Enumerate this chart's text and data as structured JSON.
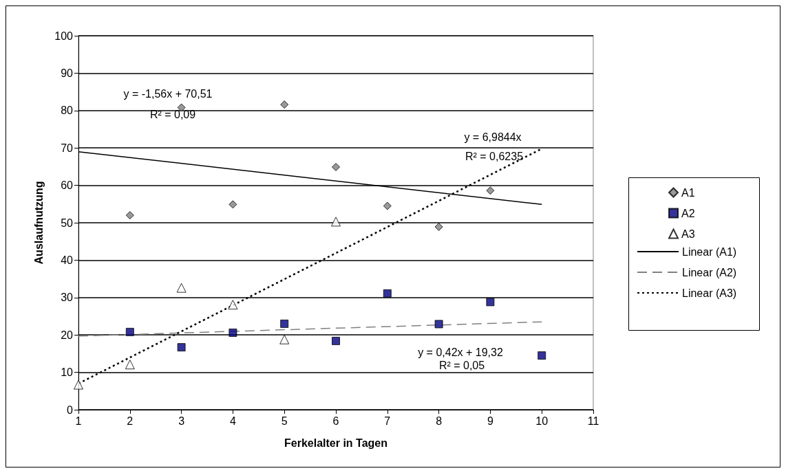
{
  "chart_data": {
    "type": "scatter",
    "xlabel": "Ferkelalter in Tagen",
    "ylabel": "Auslaufnutzung",
    "xlim": [
      1,
      11
    ],
    "xticks": [
      1,
      2,
      3,
      4,
      5,
      6,
      7,
      8,
      9,
      10,
      11
    ],
    "ylim": [
      0,
      100
    ],
    "yticks": [
      0,
      10,
      20,
      30,
      40,
      50,
      60,
      70,
      80,
      90,
      100
    ],
    "grid": "y",
    "legend": "right",
    "series": [
      {
        "name": "A1",
        "color": "#808080",
        "marker": "diamond",
        "x": [
          2,
          3,
          4,
          5,
          6,
          7,
          8,
          9
        ],
        "values": [
          52.0,
          80.8,
          54.9,
          81.6,
          64.9,
          54.5,
          48.9,
          58.6
        ]
      },
      {
        "name": "A2",
        "color": "#000080",
        "marker": "square",
        "x": [
          2,
          3,
          4,
          5,
          6,
          7,
          8,
          9,
          10
        ],
        "values": [
          20.8,
          16.7,
          20.6,
          23.0,
          18.4,
          31.1,
          22.9,
          28.8,
          14.5
        ]
      },
      {
        "name": "A3",
        "color": "#ffffff",
        "marker": "triangle",
        "x": [
          1,
          2,
          3,
          4,
          5,
          6
        ],
        "values": [
          6.7,
          12.1,
          32.6,
          28.1,
          18.8,
          50.3
        ]
      },
      {
        "name": "Linear (A1)",
        "type": "line",
        "color": "#000000",
        "marker": "none",
        "line_style": "solid",
        "x": [
          1,
          10
        ],
        "values": [
          69.0,
          54.9
        ]
      },
      {
        "name": "Linear (A2)",
        "type": "line",
        "color": "#808080",
        "marker": "none",
        "line_style": "dashed",
        "x": [
          1,
          10
        ],
        "values": [
          19.7,
          23.5
        ]
      },
      {
        "name": "Linear (A3)",
        "type": "line",
        "color": "#000000",
        "marker": "none",
        "line_style": "dotted",
        "x": [
          1,
          10
        ],
        "values": [
          7.0,
          69.8
        ]
      }
    ],
    "annotations": [
      "y = -1,56x + 70,51",
      "R² = 0,09",
      "y = 6,9844x",
      "R² = 0,6235",
      "y = 0,42x + 19,32",
      "R² = 0,05"
    ]
  }
}
